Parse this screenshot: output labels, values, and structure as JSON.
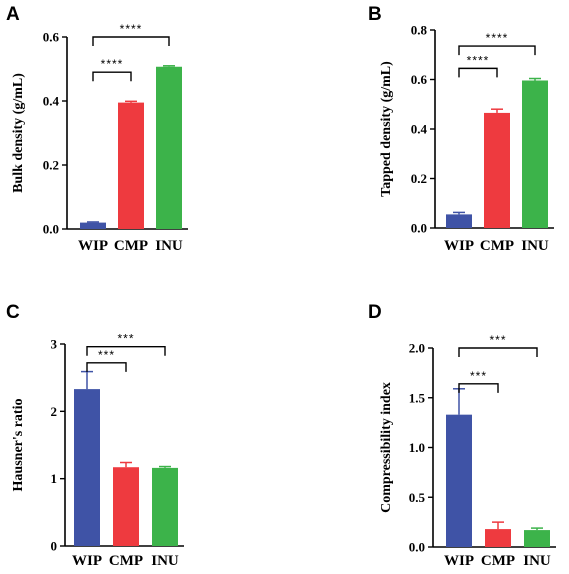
{
  "colors": {
    "WIP": "#3F53A6",
    "CMP": "#EE3A3F",
    "INU": "#3CB34A"
  },
  "chart_data": [
    {
      "type": "bar",
      "panel": "A",
      "ylabel": "Bulk density (g/mL)",
      "categories": [
        "WIP",
        "CMP",
        "INU"
      ],
      "values": [
        0.02,
        0.395,
        0.507
      ],
      "errors": [
        0.002,
        0.004,
        0.003
      ],
      "ylim": [
        0,
        0.6
      ],
      "yticks": [
        0.0,
        0.2,
        0.4,
        0.6
      ],
      "tick_labels": [
        "0.0",
        "0.2",
        "0.4",
        "0.6"
      ],
      "brackets": [
        {
          "from": "WIP",
          "to": "CMP",
          "label": "****",
          "y": 0.49
        },
        {
          "from": "WIP",
          "to": "INU",
          "label": "****",
          "y": 0.6
        }
      ]
    },
    {
      "type": "bar",
      "panel": "B",
      "ylabel": "Tapped density (g/mL)",
      "categories": [
        "WIP",
        "CMP",
        "INU"
      ],
      "values": [
        0.055,
        0.465,
        0.596
      ],
      "errors": [
        0.008,
        0.015,
        0.008
      ],
      "ylim": [
        0,
        0.8
      ],
      "yticks": [
        0.0,
        0.2,
        0.4,
        0.6,
        0.8
      ],
      "tick_labels": [
        "0.0",
        "0.2",
        "0.4",
        "0.6",
        "0.8"
      ],
      "brackets": [
        {
          "from": "WIP",
          "to": "CMP",
          "label": "****",
          "y": 0.645
        },
        {
          "from": "WIP",
          "to": "INU",
          "label": "****",
          "y": 0.735
        }
      ]
    },
    {
      "type": "bar",
      "panel": "C",
      "ylabel": "Hausner's ratio",
      "categories": [
        "WIP",
        "CMP",
        "INU"
      ],
      "values": [
        2.33,
        1.17,
        1.16
      ],
      "errors": [
        0.26,
        0.07,
        0.02
      ],
      "ylim": [
        0,
        3
      ],
      "yticks": [
        0,
        1,
        2,
        3
      ],
      "tick_labels": [
        "0",
        "1",
        "2",
        "3"
      ],
      "brackets": [
        {
          "from": "WIP",
          "to": "CMP",
          "label": "***",
          "y": 2.72
        },
        {
          "from": "WIP",
          "to": "INU",
          "label": "***",
          "y": 2.96
        }
      ]
    },
    {
      "type": "bar",
      "panel": "D",
      "ylabel": "Compressibility index",
      "categories": [
        "WIP",
        "CMP",
        "INU"
      ],
      "values": [
        1.33,
        0.18,
        0.17
      ],
      "errors": [
        0.26,
        0.07,
        0.02
      ],
      "ylim": [
        0,
        2.0
      ],
      "yticks": [
        0.0,
        0.5,
        1.0,
        1.5,
        2.0
      ],
      "tick_labels": [
        "0.0",
        "0.5",
        "1.0",
        "1.5",
        "2.0"
      ],
      "brackets": [
        {
          "from": "WIP",
          "to": "CMP",
          "label": "***",
          "y": 1.64
        },
        {
          "from": "WIP",
          "to": "INU",
          "label": "***",
          "y": 2.0
        }
      ]
    }
  ]
}
